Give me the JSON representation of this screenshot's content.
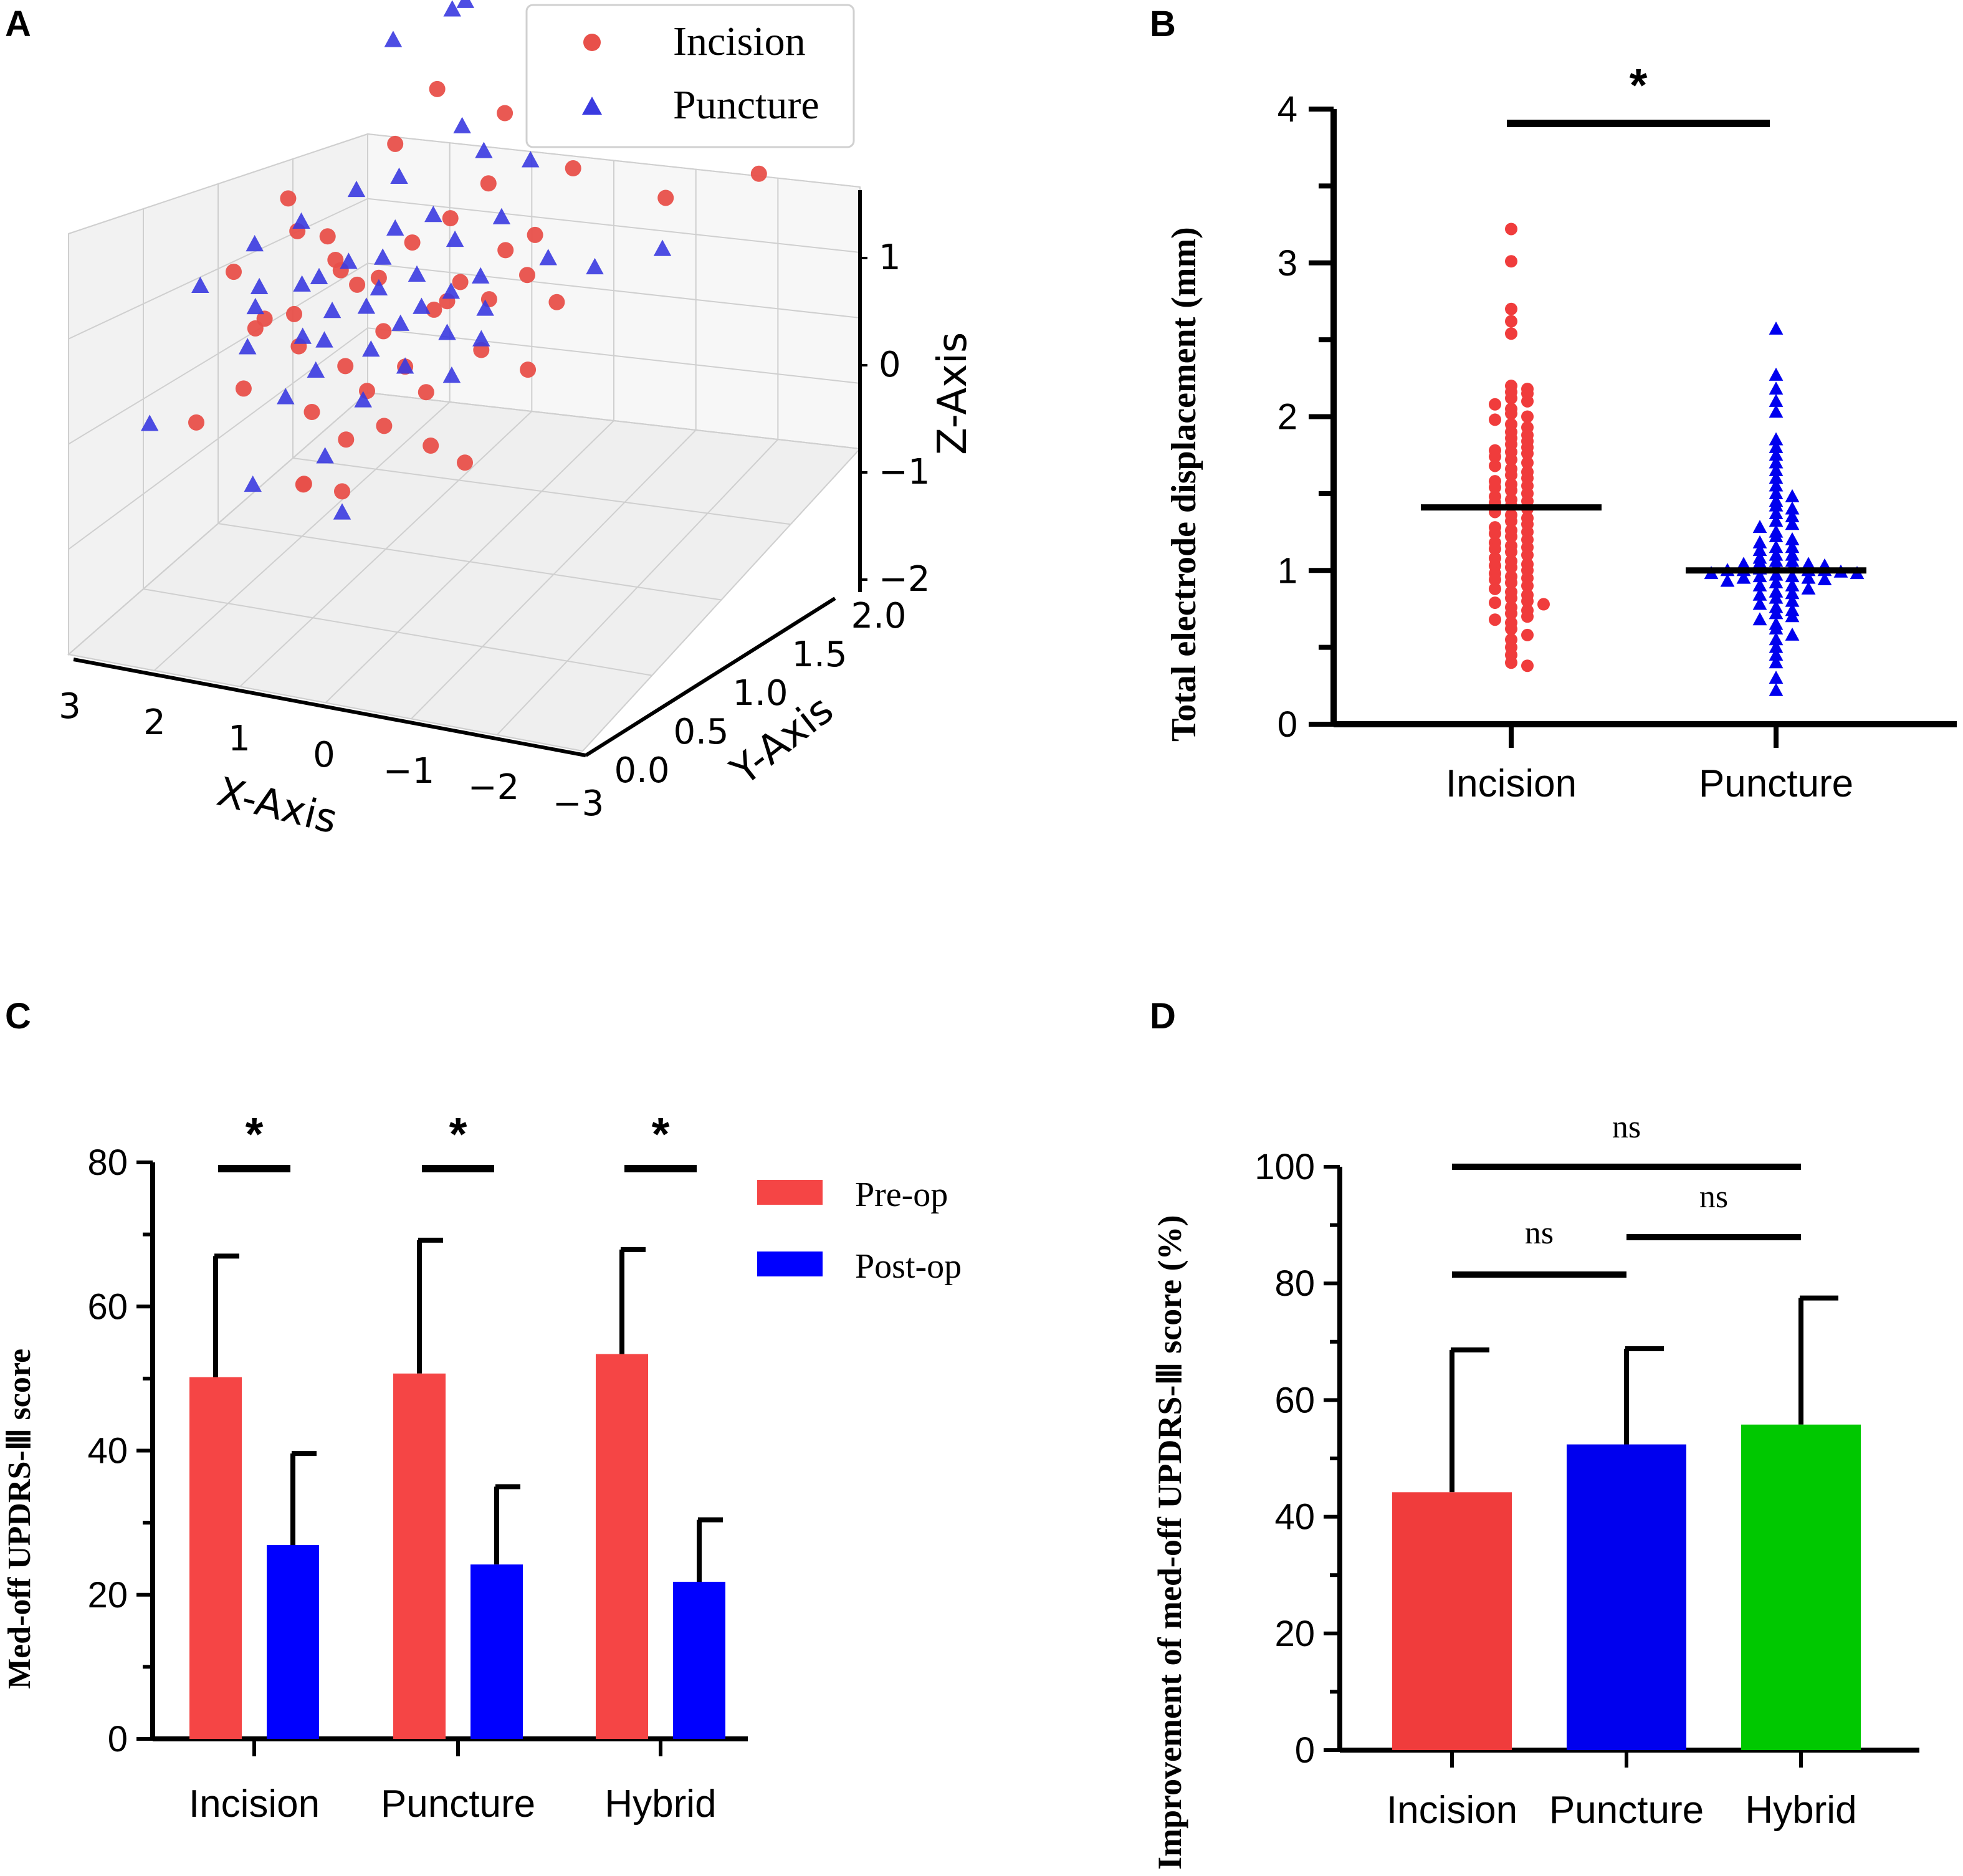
{
  "panel_letters": {
    "a": "A",
    "b": "B",
    "c": "C",
    "d": "D"
  },
  "colors": {
    "incision": "#f03c3c",
    "puncture": "#0000ee",
    "hybrid": "#00c800",
    "pre_op": "#f54545",
    "post_op": "#0000ff",
    "scatter_red": "#e8504a",
    "scatter_blue": "#3a3ae0"
  },
  "chart_data": [
    {
      "panel": "A",
      "type": "scatter",
      "projection": "3d",
      "xlabel": "X-Axis",
      "ylabel": "Y-Axis",
      "zlabel": "Z-Axis",
      "x_ticks": [
        "3",
        "2",
        "1",
        "0",
        "−1",
        "−2",
        "−3"
      ],
      "y_ticks": [
        "0.0",
        "0.5",
        "1.0",
        "1.5",
        "2.0"
      ],
      "z_ticks": [
        "1",
        "0",
        "−1",
        "−2"
      ],
      "legend": [
        "Incision",
        "Puncture"
      ],
      "series": [
        {
          "name": "Incision",
          "marker": "circle",
          "points": [
            [
              0.2,
              1.0,
              0.9
            ],
            [
              -0.3,
              1.2,
              0.6
            ],
            [
              -0.9,
              1.3,
              1.0
            ],
            [
              -1.3,
              1.6,
              1.1
            ],
            [
              0.4,
              0.8,
              0.5
            ],
            [
              -1.1,
              1.2,
              0.2
            ],
            [
              -1.5,
              1.5,
              0.5
            ],
            [
              -2.4,
              1.8,
              -0.1
            ],
            [
              -0.4,
              1.0,
              0.1
            ],
            [
              -1.6,
              1.6,
              -0.3
            ],
            [
              -0.8,
              1.1,
              -0.4
            ],
            [
              -1.2,
              1.0,
              -0.9
            ],
            [
              1.1,
              0.8,
              -0.7
            ],
            [
              2.0,
              0.6,
              -0.8
            ],
            [
              1.6,
              0.5,
              -1.2
            ],
            [
              1.0,
              0.4,
              -0.9
            ],
            [
              0.6,
              0.5,
              -0.5
            ],
            [
              0.3,
              0.6,
              -0.6
            ],
            [
              0.1,
              0.5,
              -1.0
            ],
            [
              -0.2,
              0.7,
              -0.9
            ],
            [
              -0.5,
              0.6,
              -0.7
            ],
            [
              -0.7,
              0.8,
              -0.8
            ],
            [
              -0.3,
              0.4,
              -1.2
            ],
            [
              0.4,
              0.4,
              -1.3
            ],
            [
              0.8,
              0.3,
              -1.1
            ],
            [
              1.2,
              0.3,
              -0.9
            ],
            [
              0.0,
              0.3,
              -1.4
            ],
            [
              -0.4,
              0.5,
              -1.5
            ],
            [
              -0.9,
              0.6,
              -1.1
            ],
            [
              -1.3,
              0.7,
              -1.3
            ],
            [
              0.5,
              0.2,
              -1.6
            ],
            [
              0.1,
              0.2,
              -1.8
            ],
            [
              -0.2,
              0.3,
              -1.7
            ],
            [
              -0.6,
              0.4,
              -1.9
            ],
            [
              0.3,
              0.0,
              -2.1
            ],
            [
              0.6,
              0.2,
              -2.3
            ],
            [
              0.0,
              0.1,
              -2.2
            ],
            [
              -1.0,
              0.4,
              -2.0
            ],
            [
              1.8,
              0.9,
              -0.3
            ],
            [
              1.4,
              0.7,
              -0.4
            ],
            [
              0.9,
              0.6,
              -0.3
            ],
            [
              -0.1,
              0.9,
              -0.2
            ],
            [
              -0.6,
              1.0,
              -0.5
            ],
            [
              -1.0,
              0.9,
              -0.6
            ],
            [
              0.7,
              0.7,
              -0.8
            ],
            [
              0.2,
              0.8,
              -0.4
            ],
            [
              -0.8,
              0.5,
              -0.4
            ],
            [
              1.3,
              0.2,
              -1.5
            ],
            [
              2.0,
              0.3,
              -2.0
            ]
          ]
        },
        {
          "name": "Puncture",
          "marker": "triangle",
          "points": [
            [
              0.6,
              1.5,
              1.3
            ],
            [
              0.9,
              1.6,
              1.1
            ],
            [
              1.3,
              1.4,
              0.9
            ],
            [
              0.2,
              1.2,
              0.4
            ],
            [
              -0.2,
              1.1,
              0.3
            ],
            [
              -0.6,
              1.2,
              0.2
            ],
            [
              0.5,
              0.9,
              0.1
            ],
            [
              1.0,
              0.9,
              -0.1
            ],
            [
              0.1,
              0.9,
              -0.2
            ],
            [
              -0.3,
              0.8,
              -0.3
            ],
            [
              -0.7,
              0.9,
              -0.1
            ],
            [
              -1.1,
              1.0,
              -0.5
            ],
            [
              -1.5,
              1.1,
              -0.6
            ],
            [
              -2.0,
              1.3,
              -0.5
            ],
            [
              1.5,
              0.8,
              -0.4
            ],
            [
              1.9,
              0.7,
              -0.6
            ],
            [
              0.8,
              0.7,
              -0.6
            ],
            [
              0.4,
              0.7,
              -0.5
            ],
            [
              0.0,
              0.7,
              -0.6
            ],
            [
              -0.4,
              0.7,
              -0.7
            ],
            [
              -0.8,
              0.7,
              -0.8
            ],
            [
              1.2,
              0.6,
              -0.8
            ],
            [
              0.7,
              0.5,
              -0.9
            ],
            [
              0.3,
              0.5,
              -0.8
            ],
            [
              -0.1,
              0.5,
              -0.9
            ],
            [
              -0.5,
              0.6,
              -1.0
            ],
            [
              -0.9,
              0.6,
              -1.0
            ],
            [
              1.6,
              0.5,
              -1.0
            ],
            [
              2.1,
              0.4,
              -0.8
            ],
            [
              0.9,
              0.4,
              -1.1
            ],
            [
              0.5,
              0.3,
              -1.0
            ],
            [
              0.1,
              0.4,
              -1.1
            ],
            [
              -0.3,
              0.4,
              -1.2
            ],
            [
              -0.7,
              0.5,
              -1.3
            ],
            [
              1.4,
              0.3,
              -1.2
            ],
            [
              0.6,
              0.3,
              -1.3
            ],
            [
              -0.1,
              0.2,
              -1.4
            ],
            [
              1.1,
              0.4,
              -1.7
            ],
            [
              0.2,
              0.1,
              -1.9
            ],
            [
              2.4,
              0.2,
              -2.0
            ],
            [
              0.9,
              0.0,
              -2.2
            ],
            [
              0.0,
              0.1,
              -2.4
            ],
            [
              0.3,
              0.6,
              -0.7
            ],
            [
              -0.2,
              0.6,
              -0.8
            ],
            [
              1.0,
              0.6,
              -0.7
            ],
            [
              1.7,
              0.6,
              -0.9
            ],
            [
              0.4,
              0.8,
              -0.3
            ],
            [
              -0.6,
              0.8,
              -0.6
            ]
          ]
        }
      ]
    },
    {
      "panel": "B",
      "type": "scatter",
      "subtype": "dot-plot",
      "ylabel": "Total electrode displacement (mm)",
      "categories": [
        "Incision",
        "Puncture"
      ],
      "ylim": [
        0,
        4
      ],
      "yticks": [
        "0",
        "1",
        "2",
        "3",
        "4"
      ],
      "medians": [
        1.41,
        1.0
      ],
      "significance": "*",
      "series": [
        {
          "name": "Incision",
          "marker": "circle",
          "values": [
            3.22,
            3.01,
            2.7,
            2.62,
            2.54,
            2.2,
            2.18,
            2.16,
            2.15,
            2.12,
            2.1,
            2.08,
            2.05,
            2.02,
            2.0,
            1.98,
            1.95,
            1.93,
            1.9,
            1.88,
            1.86,
            1.84,
            1.82,
            1.8,
            1.78,
            1.76,
            1.74,
            1.72,
            1.7,
            1.68,
            1.66,
            1.64,
            1.62,
            1.6,
            1.58,
            1.56,
            1.54,
            1.52,
            1.5,
            1.48,
            1.46,
            1.44,
            1.42,
            1.4,
            1.38,
            1.36,
            1.34,
            1.32,
            1.3,
            1.28,
            1.26,
            1.24,
            1.22,
            1.2,
            1.18,
            1.16,
            1.14,
            1.12,
            1.1,
            1.08,
            1.06,
            1.04,
            1.02,
            1.0,
            0.98,
            0.96,
            0.94,
            0.92,
            0.9,
            0.88,
            0.86,
            0.84,
            0.82,
            0.8,
            0.78,
            0.76,
            0.74,
            0.72,
            0.7,
            0.68,
            0.66,
            0.62,
            0.58,
            0.55,
            0.5,
            0.45,
            0.4,
            0.38,
            1.03,
            1.25,
            1.55,
            1.77,
            0.79,
            1.15,
            0.95,
            1.45
          ]
        },
        {
          "name": "Puncture",
          "marker": "triangle",
          "values": [
            2.57,
            2.27,
            2.18,
            2.1,
            2.03,
            1.85,
            1.8,
            1.75,
            1.7,
            1.65,
            1.6,
            1.55,
            1.5,
            1.48,
            1.45,
            1.42,
            1.4,
            1.37,
            1.35,
            1.32,
            1.3,
            1.28,
            1.25,
            1.22,
            1.2,
            1.18,
            1.15,
            1.13,
            1.1,
            1.08,
            1.06,
            1.05,
            1.04,
            1.03,
            1.02,
            1.01,
            1.0,
            1.0,
            0.99,
            0.98,
            0.97,
            0.96,
            0.95,
            0.94,
            0.93,
            0.92,
            0.9,
            0.88,
            0.86,
            0.84,
            0.82,
            0.8,
            0.78,
            0.76,
            0.74,
            0.72,
            0.7,
            0.68,
            0.65,
            0.62,
            0.58,
            0.55,
            0.5,
            0.45,
            0.4,
            0.3,
            0.22,
            1.02,
            1.0,
            0.98,
            1.06,
            0.95,
            1.1,
            0.9,
            1.15,
            0.85,
            1.0,
            1.04,
            0.96
          ]
        }
      ]
    },
    {
      "panel": "C",
      "type": "bar",
      "ylabel": "Med-off UPDRS-Ⅲ  score",
      "categories": [
        "Incision",
        "Puncture",
        "Hybrid"
      ],
      "ylim": [
        0,
        80
      ],
      "yticks": [
        "0",
        "20",
        "40",
        "60",
        "80"
      ],
      "series": [
        {
          "name": "Pre-op",
          "values": [
            50.2,
            50.7,
            53.4
          ],
          "errors": [
            16.8,
            18.5,
            14.5
          ]
        },
        {
          "name": "Post-op",
          "values": [
            26.9,
            24.2,
            21.8
          ],
          "errors": [
            12.7,
            10.8,
            8.6
          ]
        }
      ],
      "legend": [
        "Pre-op",
        "Post-op"
      ],
      "significance": [
        "*",
        "*",
        "*"
      ]
    },
    {
      "panel": "D",
      "type": "bar",
      "ylabel": "Improvement of med-off UPDRS-Ⅲ  score (%)",
      "categories": [
        "Incision",
        "Puncture",
        "Hybrid"
      ],
      "ylim": [
        0,
        100
      ],
      "yticks": [
        "0",
        "20",
        "40",
        "60",
        "80",
        "100"
      ],
      "values": [
        44.2,
        52.4,
        55.8
      ],
      "errors": [
        24.4,
        16.4,
        21.7
      ],
      "comparisons": [
        {
          "pair": [
            "Incision",
            "Hybrid"
          ],
          "label": "ns"
        },
        {
          "pair": [
            "Incision",
            "Puncture"
          ],
          "label": "ns"
        },
        {
          "pair": [
            "Puncture",
            "Hybrid"
          ],
          "label": "ns"
        }
      ]
    }
  ]
}
